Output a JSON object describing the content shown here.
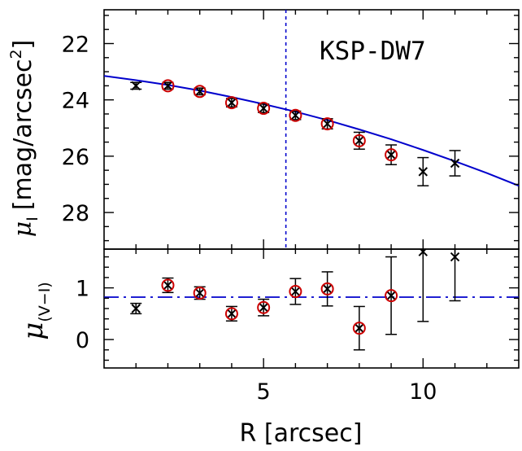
{
  "chart_data": [
    {
      "type": "scatter",
      "panel": "top",
      "annotation": "KSP-DW7",
      "ylabel": "μ_I [mag/arcsec²]",
      "ylabel_main": "μ",
      "ylabel_sub": "I",
      "ylabel_units": "[mag/arcsec",
      "ylabel_sup": "2",
      "ylabel_close": "]",
      "xlim": [
        0,
        13
      ],
      "ylim": [
        29.3,
        20.8
      ],
      "y_inverted": true,
      "yticks": [
        22,
        24,
        26,
        28
      ],
      "ytick_labels": [
        "22",
        "24",
        "26",
        "28"
      ],
      "vline_x": 5.7,
      "fit_curve": {
        "style": "solid",
        "color": "#0000cc",
        "x": [
          0,
          1,
          2,
          3,
          4,
          5,
          6,
          7,
          8,
          9,
          10,
          11,
          12,
          13
        ],
        "y": [
          23.15,
          23.3,
          23.47,
          23.67,
          23.9,
          24.15,
          24.42,
          24.72,
          25.05,
          25.4,
          25.78,
          26.18,
          26.6,
          27.05
        ]
      },
      "points": [
        {
          "x": 1,
          "y": 23.5,
          "err": 0.12,
          "circled": false
        },
        {
          "x": 2,
          "y": 23.5,
          "err": 0.12,
          "circled": true
        },
        {
          "x": 3,
          "y": 23.7,
          "err": 0.12,
          "circled": true
        },
        {
          "x": 4,
          "y": 24.1,
          "err": 0.15,
          "circled": true
        },
        {
          "x": 5,
          "y": 24.3,
          "err": 0.15,
          "circled": true
        },
        {
          "x": 6,
          "y": 24.55,
          "err": 0.15,
          "circled": true
        },
        {
          "x": 7,
          "y": 24.85,
          "err": 0.18,
          "circled": true
        },
        {
          "x": 8,
          "y": 25.45,
          "err": 0.3,
          "circled": true
        },
        {
          "x": 9,
          "y": 25.95,
          "err": 0.35,
          "circled": true
        },
        {
          "x": 10,
          "y": 26.55,
          "err": 0.5,
          "circled": false
        },
        {
          "x": 11,
          "y": 26.25,
          "err": 0.45,
          "circled": false
        }
      ]
    },
    {
      "type": "scatter",
      "panel": "bottom",
      "xlabel": "R [arcsec]",
      "ylabel": "μ_(V−I)",
      "ylabel_main": "μ",
      "ylabel_sub": "(V−I)",
      "xlim": [
        0,
        13
      ],
      "ylim": [
        -0.55,
        1.75
      ],
      "xticks": [
        5,
        10
      ],
      "xtick_labels": [
        "5",
        "10"
      ],
      "yticks": [
        0,
        1
      ],
      "ytick_labels": [
        "0",
        "1"
      ],
      "hline": {
        "y": 0.82,
        "style": "dash-dot",
        "color": "#0000cc"
      },
      "points": [
        {
          "x": 1,
          "y": 0.6,
          "err": 0.1,
          "circled": false
        },
        {
          "x": 2,
          "y": 1.05,
          "err": 0.14,
          "circled": true
        },
        {
          "x": 3,
          "y": 0.9,
          "err": 0.12,
          "circled": true
        },
        {
          "x": 4,
          "y": 0.5,
          "err": 0.14,
          "circled": true
        },
        {
          "x": 5,
          "y": 0.62,
          "err": 0.16,
          "circled": true
        },
        {
          "x": 6,
          "y": 0.93,
          "err": 0.25,
          "circled": true
        },
        {
          "x": 7,
          "y": 0.98,
          "err": 0.33,
          "circled": true
        },
        {
          "x": 8,
          "y": 0.22,
          "err": 0.42,
          "circled": true
        },
        {
          "x": 9,
          "y": 0.85,
          "err": 0.75,
          "circled": true
        },
        {
          "x": 10,
          "y": 1.7,
          "err": 1.35,
          "circled": false
        },
        {
          "x": 11,
          "y": 1.6,
          "err": 0.85,
          "circled": false
        }
      ]
    }
  ]
}
